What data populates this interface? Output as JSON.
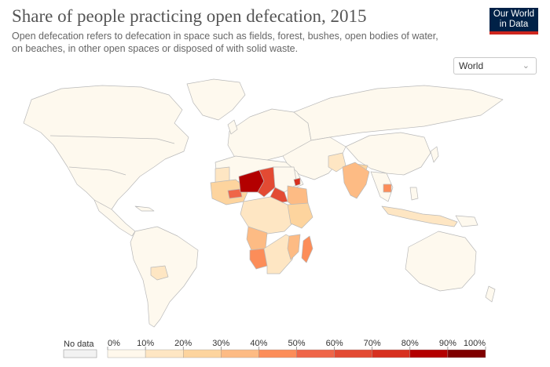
{
  "header": {
    "title": "Share of people practicing open defecation, 2015",
    "subtitle": "Open defecation refers to defecation in space such as fields, forest, bushes, open bodies of water, on beaches, in other open spaces or disposed of with solid waste."
  },
  "logo": {
    "line1": "Our World",
    "line2": "in Data",
    "bg_color": "#002147",
    "accent_color": "#ce261e"
  },
  "region_select": {
    "value": "World",
    "icon": "chevron-down-icon"
  },
  "legend": {
    "no_data_label": "No data",
    "no_data_color": "#f2f2f2",
    "ticks": [
      "0%",
      "10%",
      "20%",
      "30%",
      "40%",
      "50%",
      "60%",
      "70%",
      "80%",
      "90%",
      "100%"
    ],
    "colors": [
      "#fff8ec",
      "#fee6c3",
      "#fdd49e",
      "#fdbb84",
      "#fc8d59",
      "#ef6548",
      "#e34a33",
      "#d7301f",
      "#b30000",
      "#7f0000"
    ]
  },
  "map": {
    "level_colors": [
      "#fef9ee",
      "#fee6c3",
      "#fdd49e",
      "#fdbb84",
      "#fc8d59",
      "#ef6548",
      "#e34a33",
      "#d7301f",
      "#b30000",
      "#7f0000"
    ],
    "regions": [
      {
        "name": "Niger",
        "level": 9
      },
      {
        "name": "Chad",
        "level": 7
      },
      {
        "name": "South Sudan",
        "level": 7
      },
      {
        "name": "Eritrea",
        "level": 8
      },
      {
        "name": "Burkina Faso",
        "level": 6
      },
      {
        "name": "Ethiopia",
        "level": 3
      },
      {
        "name": "Namibia",
        "level": 4
      },
      {
        "name": "Madagascar",
        "level": 4
      },
      {
        "name": "Mozambique",
        "level": 3
      },
      {
        "name": "India",
        "level": 3
      },
      {
        "name": "Cambodia",
        "level": 4
      },
      {
        "name": "Nepal",
        "level": 2
      },
      {
        "name": "Pakistan",
        "level": 1
      },
      {
        "name": "Indonesia",
        "level": 1
      },
      {
        "name": "Bolivia",
        "level": 1
      },
      {
        "name": "Mauritania",
        "level": 2
      }
    ]
  }
}
